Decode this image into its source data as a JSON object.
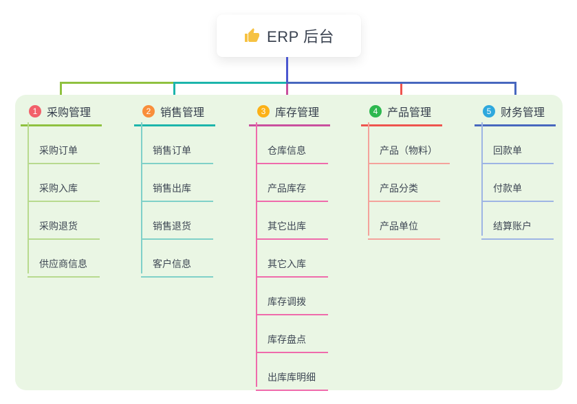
{
  "root": {
    "label": "ERP 后台",
    "icon": "thumbs-up-icon",
    "icon_color": "#f6c243"
  },
  "colors": {
    "page_bg": "#ffffff",
    "panel_bg": "#eaf6e4",
    "root_connector": "#4b57d0",
    "text": "#3a4250"
  },
  "branches": [
    {
      "index": "1",
      "label": "采购管理",
      "colors": {
        "badge": "#f2606a",
        "main": "#8fc13f",
        "sub": "#b7da8e"
      },
      "items": [
        "采购订单",
        "采购入库",
        "采购退货",
        "供应商信息"
      ]
    },
    {
      "index": "2",
      "label": "销售管理",
      "colors": {
        "badge": "#f98e3b",
        "main": "#1cb5ab",
        "sub": "#7fd0c8"
      },
      "items": [
        "销售订单",
        "销售出库",
        "销售退货",
        "客户信息"
      ]
    },
    {
      "index": "3",
      "label": "库存管理",
      "colors": {
        "badge": "#fcb117",
        "main": "#c9509e",
        "sub": "#ef6aab"
      },
      "items": [
        "仓库信息",
        "产品库存",
        "其它出库",
        "其它入库",
        "库存调拨",
        "库存盘点",
        "出库库明细"
      ]
    },
    {
      "index": "4",
      "label": "产品管理",
      "colors": {
        "badge": "#2db84f",
        "main": "#ee544e",
        "sub": "#f4a29b"
      },
      "items": [
        "产品（物料）",
        "产品分类",
        "产品单位"
      ]
    },
    {
      "index": "5",
      "label": "财务管理",
      "colors": {
        "badge": "#2ea8dd",
        "main": "#4767be",
        "sub": "#9db4e4"
      },
      "items": [
        "回款单",
        "付款单",
        "结算账户"
      ]
    }
  ]
}
